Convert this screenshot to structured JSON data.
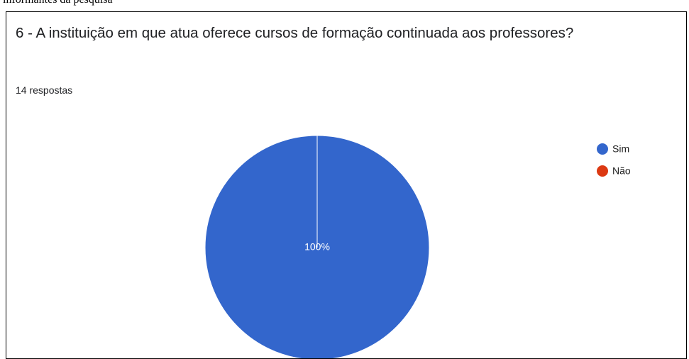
{
  "caption": "informantes da pesquisa",
  "chart_data": {
    "type": "pie",
    "title": "6 - A instituição em que atua oferece cursos de formação continuada aos professores?",
    "subtitle": "14 respostas",
    "categories": [
      "Sim",
      "Não"
    ],
    "values": [
      100,
      0
    ],
    "value_labels": [
      "100%",
      null
    ],
    "colors": [
      "#3366cc",
      "#dc3912"
    ],
    "legend": "right"
  }
}
